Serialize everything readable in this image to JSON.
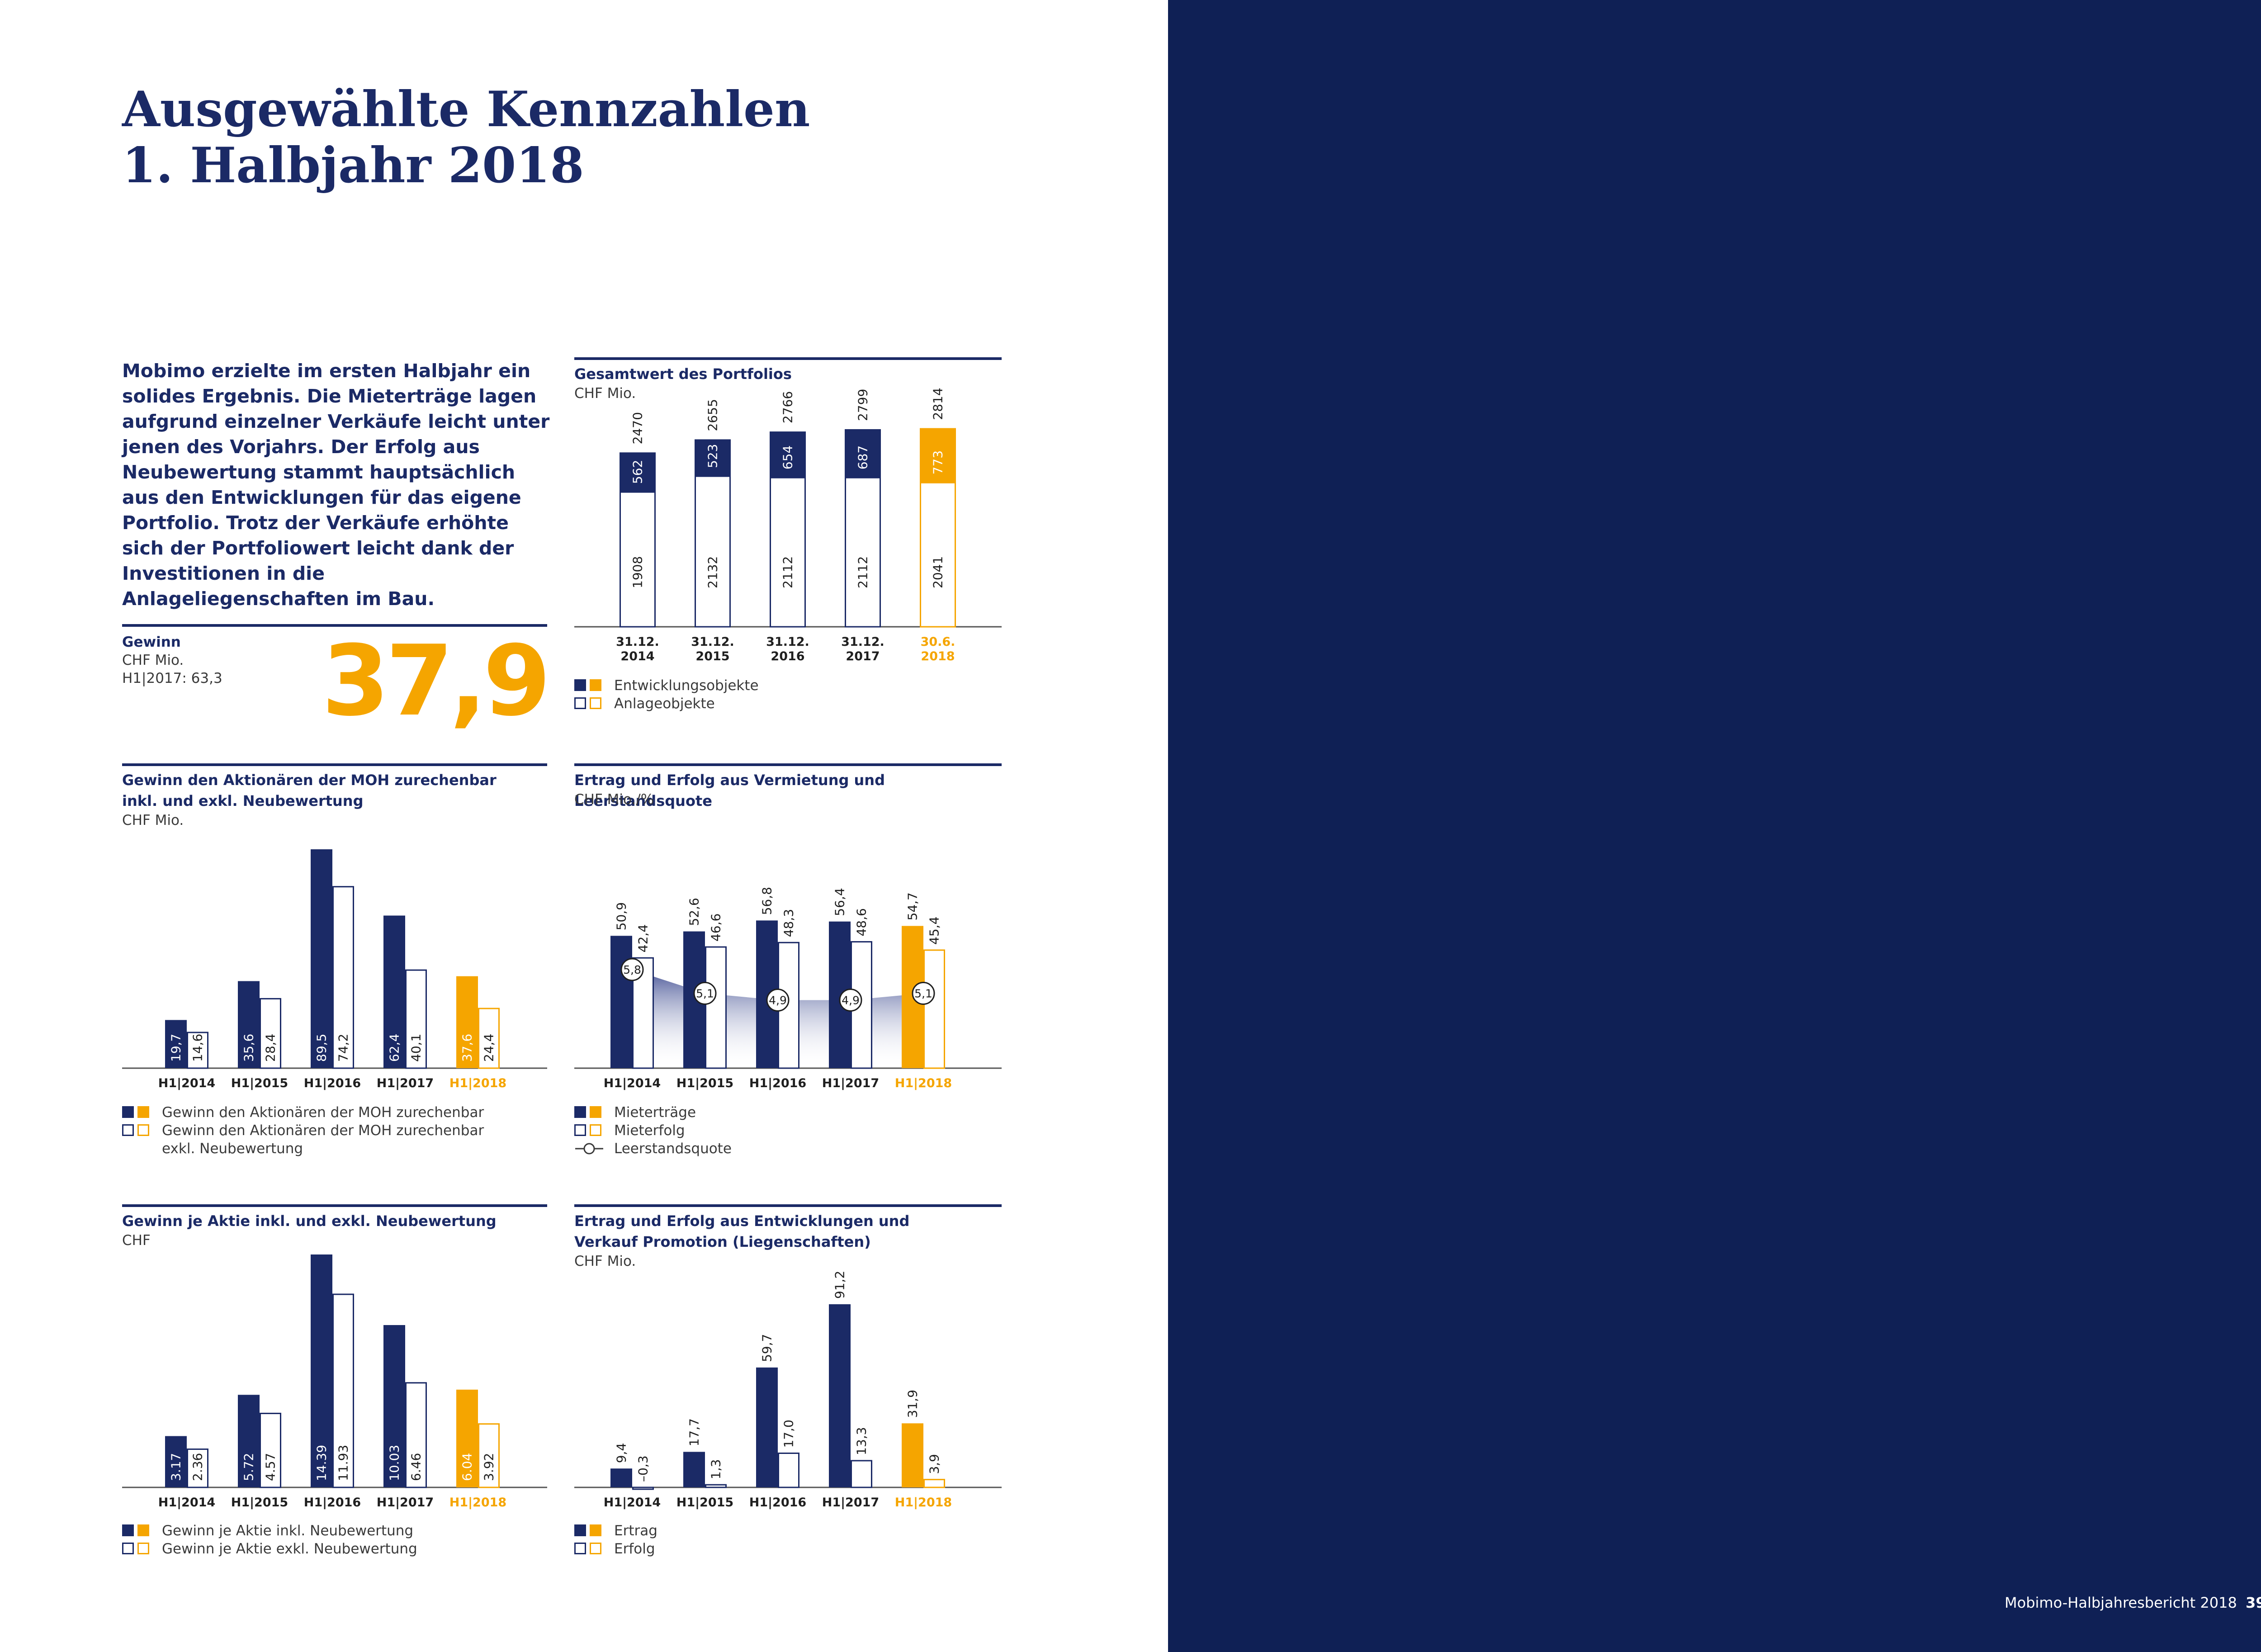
{
  "page": {
    "title_line1": "Ausgewählte Kennzahlen",
    "title_line2": "1. Halbjahr 2018",
    "intro": "Mobimo erzielte im ersten Halbjahr ein solides Ergebnis. Die Mieterträge lagen aufgrund einzelner Verkäufe leicht unter jenen des Vorjahrs. Der Erfolg aus Neubewertung stammt hauptsächlich aus den Entwicklungen für das eigene Portfolio. Trotz der Verkäufe erhöhte sich der Portfoliowert leicht dank der Investi­tionen in die Anlageliegenschaften im Bau.",
    "footer_text": "Mobimo-Halbjahresbericht 2018",
    "page_number": "39"
  },
  "colors": {
    "navy": "#1b2a66",
    "orange": "#f5a500",
    "panel": "#0f2055"
  },
  "kpi": {
    "label": "Gewinn",
    "unit": "CHF Mio.",
    "prior": "H1|2017: 63,3",
    "value": "37,9"
  },
  "legend_icons": {
    "filled": "filled-square-icon",
    "outline": "outline-square-icon",
    "line": "line-circle-icon"
  },
  "chart_data": [
    {
      "id": "portfolio",
      "type": "bar",
      "stacked": true,
      "title": "Gesamtwert des Portfolios",
      "unit": "CHF Mio.",
      "categories": [
        [
          "31.12.",
          "2014"
        ],
        [
          "31.12.",
          "2015"
        ],
        [
          "31.12.",
          "2016"
        ],
        [
          "31.12.",
          "2017"
        ],
        [
          "30.6.",
          "2018"
        ]
      ],
      "highlight_index": 4,
      "series": [
        {
          "name": "Anlageobjekte",
          "values": [
            1908,
            2132,
            2112,
            2112,
            2041
          ]
        },
        {
          "name": "Entwicklungsobjekte",
          "values": [
            562,
            523,
            654,
            687,
            773
          ]
        }
      ],
      "totals": [
        2470,
        2655,
        2766,
        2799,
        2814
      ],
      "legend": [
        "Entwicklungsobjekte",
        "Anlageobjekte"
      ]
    },
    {
      "id": "gewinn-moh",
      "type": "bar",
      "title_lines": [
        "Gewinn den Aktionären der MOH zurechenbar",
        "inkl. und exkl. Neubewertung"
      ],
      "unit": "CHF Mio.",
      "categories": [
        "H1|2014",
        "H1|2015",
        "H1|2016",
        "H1|2017",
        "H1|2018"
      ],
      "highlight_index": 4,
      "series": [
        {
          "name": "Gewinn den Aktionären der MOH zurechenbar",
          "values": [
            19.7,
            35.6,
            89.5,
            62.4,
            37.6
          ],
          "labels": [
            "19,7",
            "35,6",
            "89,5",
            "62,4",
            "37,6"
          ]
        },
        {
          "name": "Gewinn den Aktionären der MOH zurechenbar exkl. Neubewertung",
          "values": [
            14.6,
            28.4,
            74.2,
            40.1,
            24.4
          ],
          "labels": [
            "14,6",
            "28,4",
            "74,2",
            "40,1",
            "24,4"
          ]
        }
      ],
      "legend": [
        [
          "Gewinn den Aktionären der MOH zurechenbar"
        ],
        [
          "Gewinn den Aktionären der MOH zurechenbar",
          "exkl. Neubewertung"
        ]
      ]
    },
    {
      "id": "vermietung",
      "type": "bar",
      "title": "Ertrag und Erfolg aus Vermietung und Leerstandsquote",
      "unit": "CHF Mio./%",
      "categories": [
        "H1|2014",
        "H1|2015",
        "H1|2016",
        "H1|2017",
        "H1|2018"
      ],
      "highlight_index": 4,
      "series": [
        {
          "name": "Mieterträge",
          "values": [
            50.9,
            52.6,
            56.8,
            56.4,
            54.7
          ],
          "labels": [
            "50,9",
            "52,6",
            "56,8",
            "56,4",
            "54,7"
          ]
        },
        {
          "name": "Mieterfolg",
          "values": [
            42.4,
            46.6,
            48.3,
            48.6,
            45.4
          ],
          "labels": [
            "42,4",
            "46,6",
            "48,3",
            "48,6",
            "45,4"
          ]
        },
        {
          "name": "Leerstandsquote",
          "type": "line",
          "values": [
            5.8,
            5.1,
            4.9,
            4.9,
            5.1
          ],
          "labels": [
            "5,8",
            "5,1",
            "4,9",
            "4,9",
            "5,1"
          ]
        }
      ],
      "legend": [
        "Mieterträge",
        "Mieterfolg",
        "Leerstandsquote"
      ]
    },
    {
      "id": "gewinn-aktie",
      "type": "bar",
      "title": "Gewinn je Aktie inkl. und exkl. Neubewertung",
      "unit": "CHF",
      "categories": [
        "H1|2014",
        "H1|2015",
        "H1|2016",
        "H1|2017",
        "H1|2018"
      ],
      "highlight_index": 4,
      "series": [
        {
          "name": "Gewinn je Aktie inkl. Neubewertung",
          "values": [
            3.17,
            5.72,
            14.39,
            10.03,
            6.04
          ],
          "labels": [
            "3.17",
            "5.72",
            "14.39",
            "10.03",
            "6.04"
          ]
        },
        {
          "name": "Gewinn je Aktie exkl. Neubewertung",
          "values": [
            2.36,
            4.57,
            11.93,
            6.46,
            3.92
          ],
          "labels": [
            "2.36",
            "4.57",
            "11.93",
            "6.46",
            "3.92"
          ]
        }
      ],
      "legend": [
        "Gewinn je Aktie inkl. Neubewertung",
        "Gewinn je Aktie exkl. Neubewertung"
      ]
    },
    {
      "id": "entwicklungen",
      "type": "bar",
      "title_lines": [
        "Ertrag und Erfolg aus Entwicklungen und",
        "Verkauf Promotion (Liegenschaften)"
      ],
      "unit": "CHF Mio.",
      "categories": [
        "H1|2014",
        "H1|2015",
        "H1|2016",
        "H1|2017",
        "H1|2018"
      ],
      "highlight_index": 4,
      "series": [
        {
          "name": "Ertrag",
          "values": [
            9.4,
            17.7,
            59.7,
            91.2,
            31.9
          ],
          "labels": [
            "9,4",
            "17,7",
            "59,7",
            "91,2",
            "31,9"
          ]
        },
        {
          "name": "Erfolg",
          "values": [
            -0.3,
            1.3,
            17.0,
            13.3,
            3.9
          ],
          "labels": [
            "–0,3",
            "1,3",
            "17,0",
            "13,3",
            "3,9"
          ]
        }
      ],
      "legend": [
        "Ertrag",
        "Erfolg"
      ]
    }
  ]
}
